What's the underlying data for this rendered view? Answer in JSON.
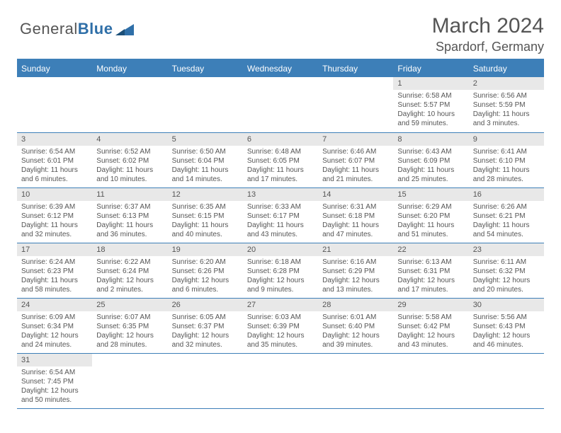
{
  "logo": {
    "word1": "General",
    "word2": "Blue"
  },
  "header": {
    "title": "March 2024",
    "location": "Spardorf, Germany"
  },
  "colors": {
    "accent": "#3d7fb8",
    "dayrow_bg": "#e8e8e8",
    "text": "#555555"
  },
  "calendar": {
    "dayNames": [
      "Sunday",
      "Monday",
      "Tuesday",
      "Wednesday",
      "Thursday",
      "Friday",
      "Saturday"
    ],
    "weeks": [
      [
        null,
        null,
        null,
        null,
        null,
        {
          "n": "1",
          "sunrise": "6:58 AM",
          "sunset": "5:57 PM",
          "daylight": "10 hours and 59 minutes."
        },
        {
          "n": "2",
          "sunrise": "6:56 AM",
          "sunset": "5:59 PM",
          "daylight": "11 hours and 3 minutes."
        }
      ],
      [
        {
          "n": "3",
          "sunrise": "6:54 AM",
          "sunset": "6:01 PM",
          "daylight": "11 hours and 6 minutes."
        },
        {
          "n": "4",
          "sunrise": "6:52 AM",
          "sunset": "6:02 PM",
          "daylight": "11 hours and 10 minutes."
        },
        {
          "n": "5",
          "sunrise": "6:50 AM",
          "sunset": "6:04 PM",
          "daylight": "11 hours and 14 minutes."
        },
        {
          "n": "6",
          "sunrise": "6:48 AM",
          "sunset": "6:05 PM",
          "daylight": "11 hours and 17 minutes."
        },
        {
          "n": "7",
          "sunrise": "6:46 AM",
          "sunset": "6:07 PM",
          "daylight": "11 hours and 21 minutes."
        },
        {
          "n": "8",
          "sunrise": "6:43 AM",
          "sunset": "6:09 PM",
          "daylight": "11 hours and 25 minutes."
        },
        {
          "n": "9",
          "sunrise": "6:41 AM",
          "sunset": "6:10 PM",
          "daylight": "11 hours and 28 minutes."
        }
      ],
      [
        {
          "n": "10",
          "sunrise": "6:39 AM",
          "sunset": "6:12 PM",
          "daylight": "11 hours and 32 minutes."
        },
        {
          "n": "11",
          "sunrise": "6:37 AM",
          "sunset": "6:13 PM",
          "daylight": "11 hours and 36 minutes."
        },
        {
          "n": "12",
          "sunrise": "6:35 AM",
          "sunset": "6:15 PM",
          "daylight": "11 hours and 40 minutes."
        },
        {
          "n": "13",
          "sunrise": "6:33 AM",
          "sunset": "6:17 PM",
          "daylight": "11 hours and 43 minutes."
        },
        {
          "n": "14",
          "sunrise": "6:31 AM",
          "sunset": "6:18 PM",
          "daylight": "11 hours and 47 minutes."
        },
        {
          "n": "15",
          "sunrise": "6:29 AM",
          "sunset": "6:20 PM",
          "daylight": "11 hours and 51 minutes."
        },
        {
          "n": "16",
          "sunrise": "6:26 AM",
          "sunset": "6:21 PM",
          "daylight": "11 hours and 54 minutes."
        }
      ],
      [
        {
          "n": "17",
          "sunrise": "6:24 AM",
          "sunset": "6:23 PM",
          "daylight": "11 hours and 58 minutes."
        },
        {
          "n": "18",
          "sunrise": "6:22 AM",
          "sunset": "6:24 PM",
          "daylight": "12 hours and 2 minutes."
        },
        {
          "n": "19",
          "sunrise": "6:20 AM",
          "sunset": "6:26 PM",
          "daylight": "12 hours and 6 minutes."
        },
        {
          "n": "20",
          "sunrise": "6:18 AM",
          "sunset": "6:28 PM",
          "daylight": "12 hours and 9 minutes."
        },
        {
          "n": "21",
          "sunrise": "6:16 AM",
          "sunset": "6:29 PM",
          "daylight": "12 hours and 13 minutes."
        },
        {
          "n": "22",
          "sunrise": "6:13 AM",
          "sunset": "6:31 PM",
          "daylight": "12 hours and 17 minutes."
        },
        {
          "n": "23",
          "sunrise": "6:11 AM",
          "sunset": "6:32 PM",
          "daylight": "12 hours and 20 minutes."
        }
      ],
      [
        {
          "n": "24",
          "sunrise": "6:09 AM",
          "sunset": "6:34 PM",
          "daylight": "12 hours and 24 minutes."
        },
        {
          "n": "25",
          "sunrise": "6:07 AM",
          "sunset": "6:35 PM",
          "daylight": "12 hours and 28 minutes."
        },
        {
          "n": "26",
          "sunrise": "6:05 AM",
          "sunset": "6:37 PM",
          "daylight": "12 hours and 32 minutes."
        },
        {
          "n": "27",
          "sunrise": "6:03 AM",
          "sunset": "6:39 PM",
          "daylight": "12 hours and 35 minutes."
        },
        {
          "n": "28",
          "sunrise": "6:01 AM",
          "sunset": "6:40 PM",
          "daylight": "12 hours and 39 minutes."
        },
        {
          "n": "29",
          "sunrise": "5:58 AM",
          "sunset": "6:42 PM",
          "daylight": "12 hours and 43 minutes."
        },
        {
          "n": "30",
          "sunrise": "5:56 AM",
          "sunset": "6:43 PM",
          "daylight": "12 hours and 46 minutes."
        }
      ],
      [
        {
          "n": "31",
          "sunrise": "6:54 AM",
          "sunset": "7:45 PM",
          "daylight": "12 hours and 50 minutes."
        },
        null,
        null,
        null,
        null,
        null,
        null
      ]
    ],
    "labels": {
      "sunrise": "Sunrise:",
      "sunset": "Sunset:",
      "daylight": "Daylight:"
    }
  }
}
